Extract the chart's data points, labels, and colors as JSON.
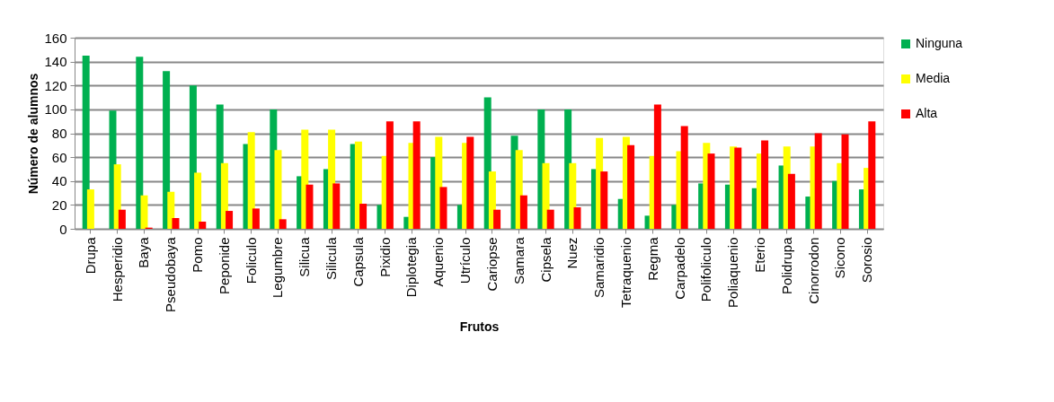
{
  "chart_data": {
    "type": "bar",
    "xlabel": "Frutos",
    "ylabel": "Número de alumnos",
    "categories": [
      "Drupa",
      "Hesperidio",
      "Baya",
      "Pseudobaya",
      "Pomo",
      "Peponide",
      "Foliculo",
      "Legumbre",
      "Silicua",
      "Silicula",
      "Capsula",
      "Pixidio",
      "Diplotegia",
      "Aquenio",
      "Utrículo",
      "Cariopse",
      "Samara",
      "Cipsela",
      "Nuez",
      "Samaridio",
      "Tetraquenio",
      "Regma",
      "Carpadelo",
      "Polifoliculo",
      "Poliaquenio",
      "Eterio",
      "Polidrupa",
      "Cinorrodon",
      "Sicono",
      "Sorosio"
    ],
    "series": [
      {
        "name": "Ninguna",
        "color": "#00b050",
        "values": [
          145,
          99,
          144,
          132,
          120,
          104,
          71,
          100,
          44,
          50,
          71,
          20,
          10,
          60,
          20,
          110,
          78,
          100,
          100,
          50,
          25,
          11,
          20,
          38,
          37,
          34,
          53,
          27,
          40,
          33
        ]
      },
      {
        "name": "Media",
        "color": "#ffff00",
        "values": [
          33,
          54,
          28,
          31,
          47,
          55,
          81,
          66,
          83,
          83,
          73,
          61,
          72,
          77,
          72,
          48,
          66,
          55,
          55,
          76,
          77,
          61,
          65,
          72,
          69,
          63,
          69,
          69,
          55,
          51
        ]
      },
      {
        "name": "Alta",
        "color": "#ff0000",
        "values": [
          0,
          16,
          1,
          9,
          6,
          15,
          17,
          8,
          37,
          38,
          21,
          90,
          90,
          35,
          77,
          16,
          28,
          16,
          18,
          48,
          70,
          104,
          86,
          63,
          68,
          74,
          46,
          80,
          79,
          90
        ]
      }
    ],
    "ylim": [
      0,
      160
    ],
    "yticks": [
      0,
      20,
      40,
      60,
      80,
      100,
      120,
      140,
      160
    ],
    "grid": "y",
    "legend": "right"
  }
}
